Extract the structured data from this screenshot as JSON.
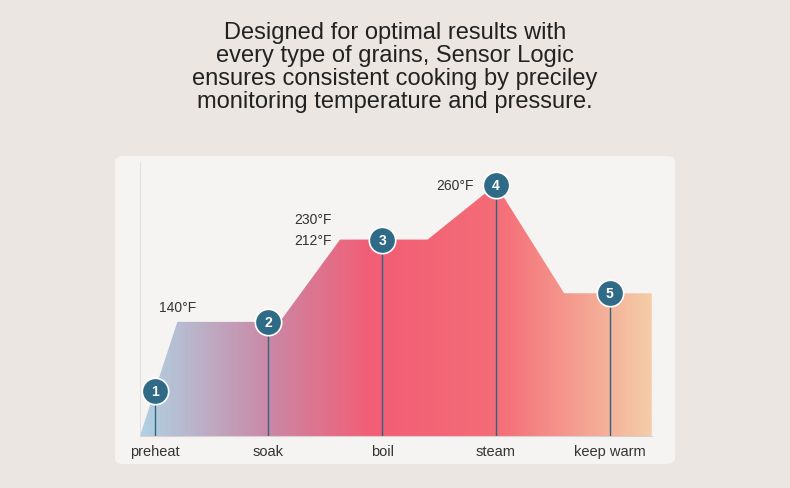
{
  "chart_data": {
    "type": "area",
    "title": "Designed for optimal results with\nevery type of grains, Sensor Logic\nensures consistent cooking by preciley\nmonitoring temperature and pressure.",
    "x": [
      -0.13,
      0.2,
      1.1,
      1.63,
      2.4,
      3.0,
      3.6,
      4.37
    ],
    "values": [
      40,
      140,
      140,
      212,
      212,
      260,
      165,
      165
    ],
    "xlim": [
      -0.13,
      4.37
    ],
    "xticks": [
      {
        "value": 0,
        "label": "preheat"
      },
      {
        "value": 1,
        "label": "soak"
      },
      {
        "value": 2,
        "label": "boil"
      },
      {
        "value": 3,
        "label": "steam"
      },
      {
        "value": 4,
        "label": "keep warm"
      }
    ],
    "step_numbers": [
      1,
      2,
      3,
      4,
      5
    ],
    "ylim": [
      40,
      280
    ],
    "yticks": [],
    "tick_labels": "x",
    "grid": false,
    "annotations": [
      {
        "x": 0.2,
        "value": 140,
        "label": "140°F"
      },
      {
        "x": 1.63,
        "value": 212,
        "label": "212°F"
      },
      {
        "x": 1.63,
        "value": 230,
        "label": "230°F"
      },
      {
        "x": 3.0,
        "value": 260,
        "label": "260°F"
      }
    ]
  }
}
